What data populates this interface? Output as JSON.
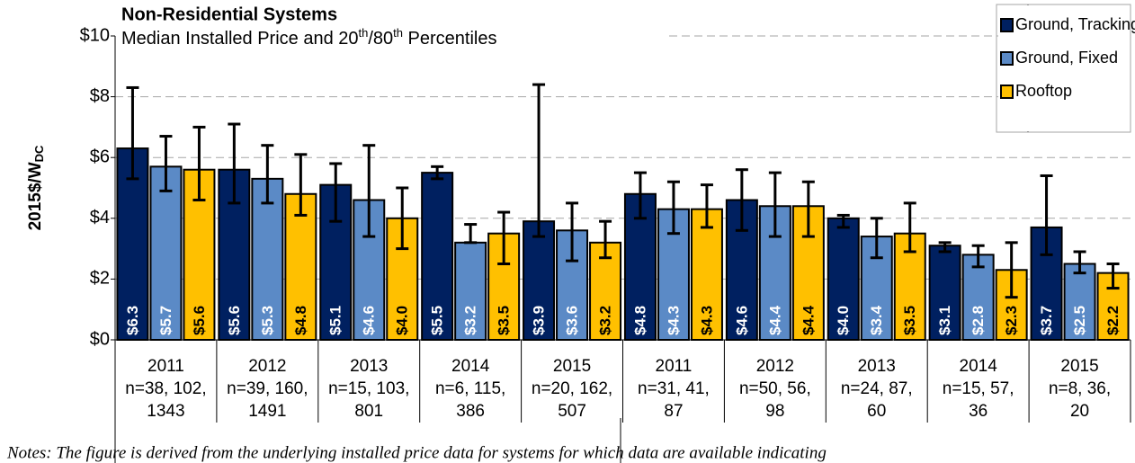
{
  "chart_data": {
    "type": "bar",
    "title": "Non-Residential Systems",
    "subtitle": [
      "Median Installed Price and 20",
      "th",
      "/80",
      "th",
      "  Percentiles"
    ],
    "y_label": "2015$/W",
    "y_label_sub": "DC",
    "note": "Notes: The figure is derived from the underlying installed price data for systems for which data are available indicating",
    "categories": [
      [
        "2011",
        "n=38, 102,",
        "1343"
      ],
      [
        "2012",
        "n=39, 160,",
        "1491"
      ],
      [
        "2013",
        "n=15, 103,",
        "801"
      ],
      [
        "2014",
        "n=6, 115,",
        "386"
      ],
      [
        "2015",
        "n=20, 162,",
        "507"
      ],
      [
        "2011",
        "n=31, 41,",
        "87"
      ],
      [
        "2012",
        "n=50, 56,",
        "98"
      ],
      [
        "2013",
        "n=24, 87,",
        "60"
      ],
      [
        "2014",
        "n=15, 57,",
        "36"
      ],
      [
        "2015",
        "n=8, 36,",
        "20"
      ]
    ],
    "series": [
      {
        "name": "Ground, Tracking",
        "color": "#002060",
        "label_color": "#ffffff",
        "values": [
          6.3,
          5.6,
          5.1,
          5.5,
          3.9,
          4.8,
          4.6,
          4.0,
          3.1,
          3.7
        ],
        "value_labels": [
          "$6.3",
          "$5.6",
          "$5.1",
          "$5.5",
          "$3.9",
          "$4.8",
          "$4.6",
          "$4.0",
          "$3.1",
          "$3.7"
        ],
        "low": [
          5.3,
          4.5,
          3.9,
          5.3,
          3.4,
          4.0,
          3.6,
          3.7,
          2.9,
          2.8
        ],
        "high": [
          8.3,
          7.1,
          5.8,
          5.7,
          8.4,
          5.5,
          5.6,
          4.1,
          3.2,
          5.4
        ]
      },
      {
        "name": "Ground, Fixed",
        "color": "#5b8ac6",
        "label_color": "#ffffff",
        "values": [
          5.7,
          5.3,
          4.6,
          3.2,
          3.6,
          4.3,
          4.4,
          3.4,
          2.8,
          2.5
        ],
        "value_labels": [
          "$5.7",
          "$5.3",
          "$4.6",
          "$3.2",
          "$3.6",
          "$4.3",
          "$4.4",
          "$3.4",
          "$2.8",
          "$2.5"
        ],
        "low": [
          4.9,
          4.5,
          3.4,
          3.2,
          2.6,
          3.5,
          3.4,
          2.7,
          2.4,
          2.2
        ],
        "high": [
          6.7,
          6.4,
          6.4,
          3.8,
          4.5,
          5.2,
          5.5,
          4.0,
          3.1,
          2.9
        ]
      },
      {
        "name": "Rooftop",
        "color": "#ffc000",
        "label_color": "#000000",
        "values": [
          5.6,
          4.8,
          4.0,
          3.5,
          3.2,
          4.3,
          4.4,
          3.5,
          2.3,
          2.2
        ],
        "value_labels": [
          "$5.6",
          "$4.8",
          "$4.0",
          "$3.5",
          "$3.2",
          "$4.3",
          "$4.4",
          "$3.5",
          "$2.3",
          "$2.2"
        ],
        "low": [
          4.6,
          4.1,
          3.0,
          2.5,
          2.7,
          3.7,
          3.4,
          2.9,
          1.4,
          1.7
        ],
        "high": [
          7.0,
          6.1,
          5.0,
          4.2,
          3.9,
          5.1,
          5.2,
          4.5,
          3.2,
          2.5
        ]
      }
    ],
    "ylim": [
      0,
      10
    ],
    "yticks": [
      {
        "value": 0,
        "label": "$0"
      },
      {
        "value": 2,
        "label": "$2"
      },
      {
        "value": 4,
        "label": "$4"
      },
      {
        "value": 6,
        "label": "$6"
      },
      {
        "value": 8,
        "label": "$8"
      },
      {
        "value": 10,
        "label": "$10"
      }
    ],
    "grid": true,
    "legend": "top-right"
  }
}
